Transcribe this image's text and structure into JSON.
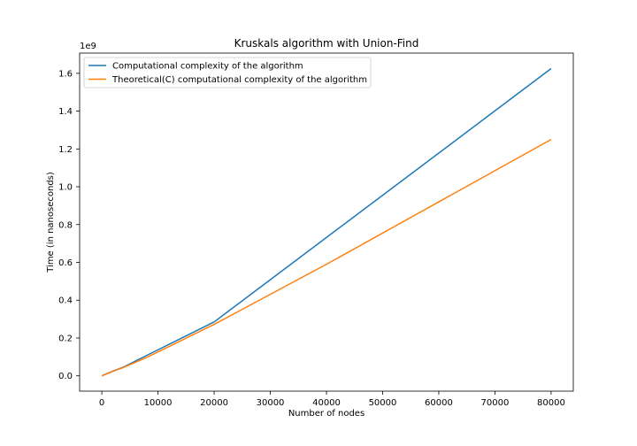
{
  "chart_data": {
    "type": "line",
    "title": "Kruskals algorithm with Union-Find",
    "xlabel": "Number of nodes",
    "ylabel": "Time (in nanoseconds)",
    "y_multiplier_label": "1e9",
    "xlim": [
      -3950,
      83950
    ],
    "ylim": [
      -0.081,
      1.707
    ],
    "xticks": [
      0,
      10000,
      20000,
      30000,
      40000,
      50000,
      60000,
      70000,
      80000
    ],
    "xtick_labels": [
      "0",
      "10000",
      "20000",
      "30000",
      "40000",
      "50000",
      "60000",
      "70000",
      "80000"
    ],
    "yticks": [
      0.0,
      0.2,
      0.4,
      0.6,
      0.8,
      1.0,
      1.2,
      1.4,
      1.6
    ],
    "ytick_labels": [
      "0.0",
      "0.2",
      "0.4",
      "0.6",
      "0.8",
      "1.0",
      "1.2",
      "1.4",
      "1.6"
    ],
    "grid": false,
    "legend_position": "top-left",
    "series": [
      {
        "name": "Computational complexity of the algorithm",
        "color": "#1f77b4",
        "x": [
          0,
          1000,
          2000,
          4000,
          8000,
          20000,
          80000
        ],
        "y": [
          0.0,
          0.013,
          0.025,
          0.048,
          0.108,
          0.285,
          1.625
        ]
      },
      {
        "name": "Theoretical(C) computational complexity of the algorithm",
        "color": "#ff7f0e",
        "x": [
          0,
          1000,
          2000,
          4000,
          8000,
          20000,
          40000,
          80000
        ],
        "y": [
          0.0,
          0.012,
          0.024,
          0.046,
          0.097,
          0.272,
          0.59,
          1.25
        ]
      }
    ]
  }
}
